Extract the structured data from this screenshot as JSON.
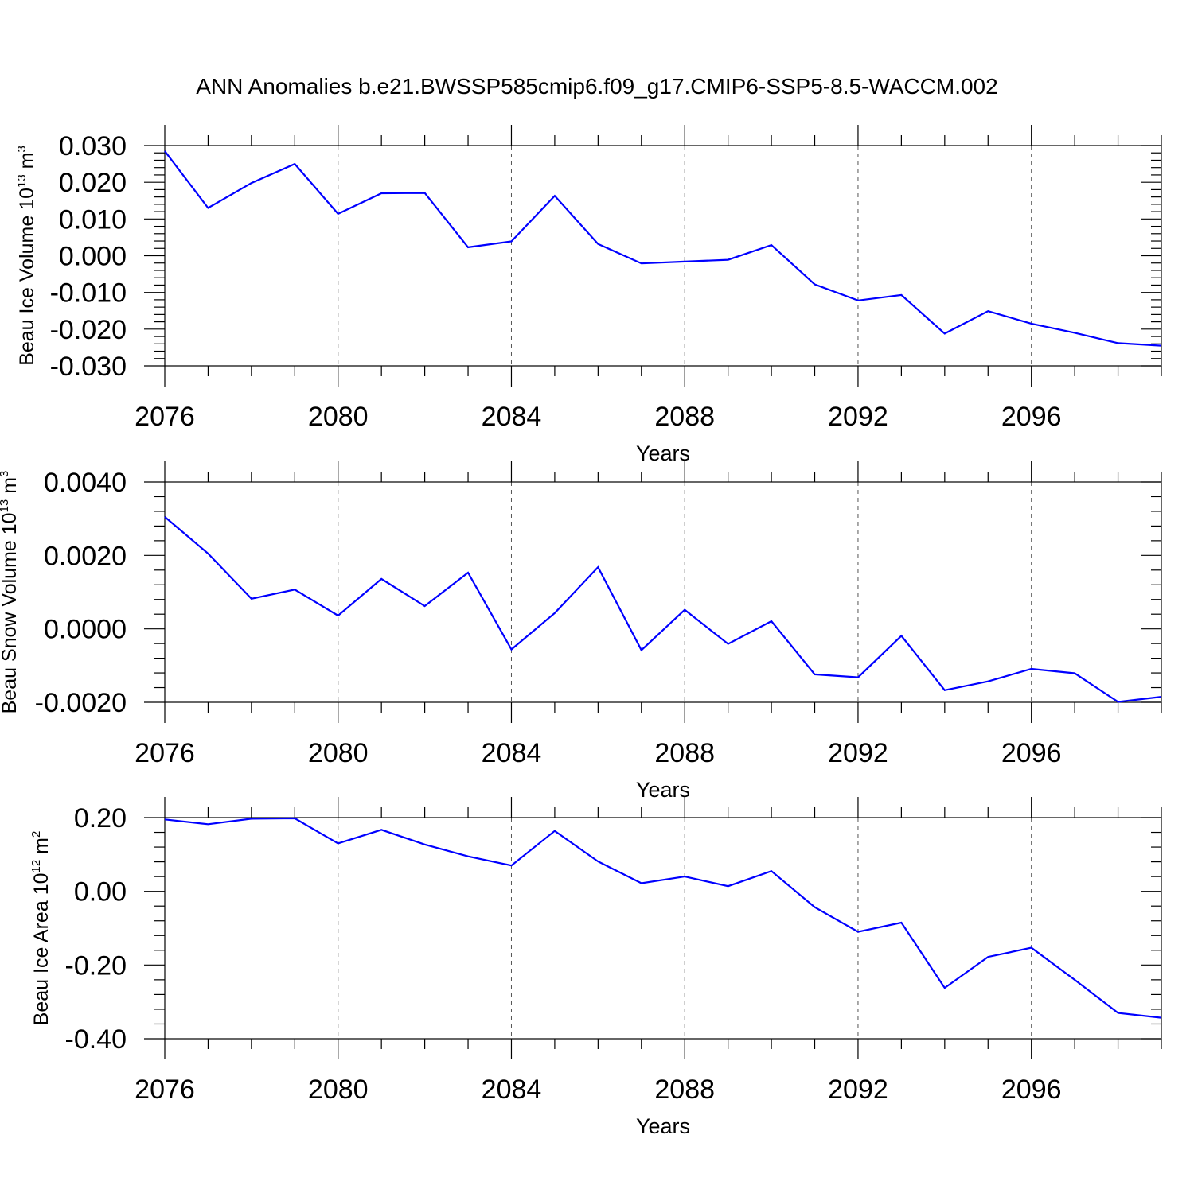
{
  "title": "ANN Anomalies b.e21.BWSSP585cmip6.f09_g17.CMIP6-SSP5-8.5-WACCM.002",
  "colors": {
    "line": "#0000ff",
    "axis": "#000000",
    "grid": "#555555"
  },
  "chart_data": [
    {
      "type": "line",
      "ylabel": {
        "text": "Beau Ice Volume 10",
        "exp": "13",
        "unit": " m",
        "unit_exp": "3"
      },
      "xlabel": "Years",
      "xlim": [
        2076,
        2099
      ],
      "ylim": [
        -0.03,
        0.03
      ],
      "xticks": [
        "2076",
        "2080",
        "2084",
        "2088",
        "2092",
        "2096"
      ],
      "yticks": [
        "0.030",
        "0.020",
        "0.010",
        "0.000",
        "-0.010",
        "-0.020",
        "-0.030"
      ],
      "grid": "vertical dashed at major x ticks",
      "x": [
        2076,
        2077,
        2078,
        2079,
        2080,
        2081,
        2082,
        2083,
        2084,
        2085,
        2086,
        2087,
        2088,
        2089,
        2090,
        2091,
        2092,
        2093,
        2094,
        2095,
        2096,
        2097,
        2098,
        2099
      ],
      "y": [
        0.0285,
        0.013,
        0.0198,
        0.025,
        0.0114,
        0.017,
        0.0171,
        0.0023,
        0.0039,
        0.0163,
        0.0032,
        -0.0021,
        -0.0016,
        -0.0011,
        0.0029,
        -0.0078,
        -0.0122,
        -0.0107,
        -0.0212,
        -0.0151,
        -0.0185,
        -0.021,
        -0.0238,
        -0.0245
      ]
    },
    {
      "type": "line",
      "ylabel": {
        "text": "Beau Snow Volume 10",
        "exp": "13",
        "unit": " m",
        "unit_exp": "3"
      },
      "xlabel": "Years",
      "xlim": [
        2076,
        2099
      ],
      "ylim": [
        -0.002,
        0.004
      ],
      "xticks": [
        "2076",
        "2080",
        "2084",
        "2088",
        "2092",
        "2096"
      ],
      "yticks": [
        "0.0040",
        "0.0020",
        "0.0000",
        "-0.0020"
      ],
      "grid": "vertical dashed at major x ticks",
      "x": [
        2076,
        2077,
        2078,
        2079,
        2080,
        2081,
        2082,
        2083,
        2084,
        2085,
        2086,
        2087,
        2088,
        2089,
        2090,
        2091,
        2092,
        2093,
        2094,
        2095,
        2096,
        2097,
        2098,
        2099
      ],
      "y": [
        0.00305,
        0.00205,
        0.00082,
        0.00107,
        0.00036,
        0.00136,
        0.00062,
        0.00153,
        -0.00056,
        0.00043,
        0.00168,
        -0.00058,
        0.00052,
        -0.00041,
        0.00021,
        -0.00124,
        -0.00132,
        -0.00019,
        -0.00167,
        -0.00143,
        -0.00109,
        -0.00121,
        -0.00199,
        -0.00185
      ]
    },
    {
      "type": "line",
      "ylabel": {
        "text": "Beau Ice Area 10",
        "exp": "12",
        "unit": " m",
        "unit_exp": "2"
      },
      "xlabel": "Years",
      "xlim": [
        2076,
        2099
      ],
      "ylim": [
        -0.4,
        0.2
      ],
      "xticks": [
        "2076",
        "2080",
        "2084",
        "2088",
        "2092",
        "2096"
      ],
      "yticks": [
        "0.20",
        "0.00",
        "-0.20",
        "-0.40"
      ],
      "grid": "vertical dashed at major x ticks",
      "x": [
        2076,
        2077,
        2078,
        2079,
        2080,
        2081,
        2082,
        2083,
        2084,
        2085,
        2086,
        2087,
        2088,
        2089,
        2090,
        2091,
        2092,
        2093,
        2094,
        2095,
        2096,
        2097,
        2098,
        2099
      ],
      "y": [
        0.195,
        0.182,
        0.197,
        0.198,
        0.13,
        0.167,
        0.127,
        0.095,
        0.07,
        0.164,
        0.081,
        0.022,
        0.04,
        0.014,
        0.055,
        -0.043,
        -0.11,
        -0.085,
        -0.262,
        -0.178,
        -0.153,
        -0.24,
        -0.33,
        -0.343
      ]
    }
  ]
}
